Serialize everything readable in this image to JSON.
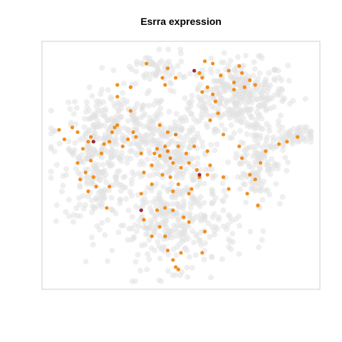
{
  "chart_data": {
    "type": "scatter",
    "title": "Esrra expression",
    "xlabel": "",
    "ylabel": "",
    "xlim": [
      0,
      100
    ],
    "ylim": [
      0,
      100
    ],
    "axes": "hidden",
    "grid": false,
    "legend": "none",
    "colors": {
      "background_cells": "#e2e2e2",
      "low": "#f28e1c",
      "mid": "#e0801a",
      "high": "#9a2a3a",
      "frame": "#cfcfcf"
    },
    "background_clusters": [
      {
        "name": "",
        "cx": 72,
        "cy": 80,
        "sx": 9,
        "sy": 7,
        "n": 320
      },
      {
        "name": "",
        "cx": 25,
        "cy": 65,
        "sx": 11,
        "sy": 8,
        "n": 260
      },
      {
        "name": "",
        "cx": 18,
        "cy": 45,
        "sx": 6,
        "sy": 10,
        "n": 160
      },
      {
        "name": "",
        "cx": 47,
        "cy": 55,
        "sx": 7,
        "sy": 10,
        "n": 240
      },
      {
        "name": "",
        "cx": 48,
        "cy": 25,
        "sx": 12,
        "sy": 9,
        "n": 300
      },
      {
        "name": "",
        "cx": 40,
        "cy": 90,
        "sx": 6,
        "sy": 4,
        "n": 60
      },
      {
        "name": "",
        "cx": 79,
        "cy": 53,
        "sx": 5,
        "sy": 9,
        "n": 150
      },
      {
        "name": "",
        "cx": 92,
        "cy": 62,
        "sx": 4,
        "sy": 2,
        "n": 50
      }
    ],
    "expressing_points": [
      {
        "x": 4,
        "y": 65,
        "v": 0.3
      },
      {
        "x": 6,
        "y": 61,
        "v": 0.3
      },
      {
        "x": 9,
        "y": 66,
        "v": 0.3
      },
      {
        "x": 11,
        "y": 64,
        "v": 0.3
      },
      {
        "x": 13,
        "y": 57,
        "v": 0.3
      },
      {
        "x": 15,
        "y": 60,
        "v": 0.3
      },
      {
        "x": 16,
        "y": 62,
        "v": 0.3
      },
      {
        "x": 17,
        "y": 60,
        "v": 1.0
      },
      {
        "x": 20,
        "y": 55,
        "v": 0.3
      },
      {
        "x": 21,
        "y": 59,
        "v": 0.3
      },
      {
        "x": 23,
        "y": 60,
        "v": 0.3
      },
      {
        "x": 24,
        "y": 64,
        "v": 0.3
      },
      {
        "x": 25,
        "y": 66,
        "v": 0.3
      },
      {
        "x": 26,
        "y": 67,
        "v": 0.3
      },
      {
        "x": 28,
        "y": 58,
        "v": 0.3
      },
      {
        "x": 30,
        "y": 61,
        "v": 0.3
      },
      {
        "x": 32,
        "y": 64,
        "v": 0.3
      },
      {
        "x": 33,
        "y": 62,
        "v": 0.3
      },
      {
        "x": 26,
        "y": 79,
        "v": 0.3
      },
      {
        "x": 26,
        "y": 84,
        "v": 0.3
      },
      {
        "x": 31,
        "y": 83,
        "v": 0.3
      },
      {
        "x": 31,
        "y": 73,
        "v": 0.3
      },
      {
        "x": 35,
        "y": 55,
        "v": 0.3
      },
      {
        "x": 16,
        "y": 52,
        "v": 0.3
      },
      {
        "x": 11,
        "y": 51,
        "v": 0.3
      },
      {
        "x": 14,
        "y": 47,
        "v": 0.3
      },
      {
        "x": 17,
        "y": 45,
        "v": 0.3
      },
      {
        "x": 12,
        "y": 44,
        "v": 0.3
      },
      {
        "x": 18,
        "y": 41,
        "v": 0.3
      },
      {
        "x": 15,
        "y": 39,
        "v": 0.3
      },
      {
        "x": 23,
        "y": 41,
        "v": 0.3
      },
      {
        "x": 22,
        "y": 32,
        "v": 0.3
      },
      {
        "x": 35,
        "y": 38,
        "v": 0.3
      },
      {
        "x": 36,
        "y": 47,
        "v": 0.3
      },
      {
        "x": 39,
        "y": 50,
        "v": 0.3
      },
      {
        "x": 40,
        "y": 55,
        "v": 0.3
      },
      {
        "x": 41,
        "y": 57,
        "v": 0.3
      },
      {
        "x": 42,
        "y": 54,
        "v": 0.3
      },
      {
        "x": 44,
        "y": 58,
        "v": 0.3
      },
      {
        "x": 45,
        "y": 56,
        "v": 0.7
      },
      {
        "x": 46,
        "y": 53,
        "v": 0.8
      },
      {
        "x": 47,
        "y": 51,
        "v": 0.3
      },
      {
        "x": 48,
        "y": 63,
        "v": 0.6
      },
      {
        "x": 49,
        "y": 58,
        "v": 0.3
      },
      {
        "x": 42,
        "y": 67,
        "v": 0.3
      },
      {
        "x": 45,
        "y": 64,
        "v": 0.3
      },
      {
        "x": 50,
        "y": 49,
        "v": 0.3
      },
      {
        "x": 53,
        "y": 51,
        "v": 0.3
      },
      {
        "x": 52,
        "y": 55,
        "v": 0.3
      },
      {
        "x": 55,
        "y": 58,
        "v": 0.3
      },
      {
        "x": 56,
        "y": 48,
        "v": 0.3
      },
      {
        "x": 57,
        "y": 45,
        "v": 0.3
      },
      {
        "x": 60,
        "y": 46,
        "v": 0.3
      },
      {
        "x": 61,
        "y": 50,
        "v": 0.3
      },
      {
        "x": 60,
        "y": 56,
        "v": 0.3
      },
      {
        "x": 57,
        "y": 46,
        "v": 0.9
      },
      {
        "x": 43,
        "y": 46,
        "v": 0.3
      },
      {
        "x": 46,
        "y": 45,
        "v": 0.3
      },
      {
        "x": 39,
        "y": 42,
        "v": 0.3
      },
      {
        "x": 49,
        "y": 42,
        "v": 0.3
      },
      {
        "x": 47,
        "y": 39,
        "v": 0.3
      },
      {
        "x": 53,
        "y": 38,
        "v": 0.3
      },
      {
        "x": 54,
        "y": 40,
        "v": 0.3
      },
      {
        "x": 41,
        "y": 31,
        "v": 0.3
      },
      {
        "x": 35,
        "y": 31,
        "v": 1.0
      },
      {
        "x": 36,
        "y": 27,
        "v": 0.3
      },
      {
        "x": 42,
        "y": 24,
        "v": 0.3
      },
      {
        "x": 44,
        "y": 20,
        "v": 0.3
      },
      {
        "x": 45,
        "y": 14,
        "v": 0.3
      },
      {
        "x": 47,
        "y": 10,
        "v": 0.3
      },
      {
        "x": 48,
        "y": 7,
        "v": 0.3
      },
      {
        "x": 49,
        "y": 6,
        "v": 0.3
      },
      {
        "x": 50,
        "y": 13,
        "v": 0.3
      },
      {
        "x": 51,
        "y": 28,
        "v": 0.3
      },
      {
        "x": 53,
        "y": 26,
        "v": 0.3
      },
      {
        "x": 39,
        "y": 20,
        "v": 0.3
      },
      {
        "x": 47,
        "y": 31,
        "v": 0.3
      },
      {
        "x": 44,
        "y": 32,
        "v": 0.3
      },
      {
        "x": 58,
        "y": 13,
        "v": 0.3
      },
      {
        "x": 59,
        "y": 22,
        "v": 0.3
      },
      {
        "x": 55,
        "y": 90,
        "v": 0.9
      },
      {
        "x": 57,
        "y": 89,
        "v": 0.3
      },
      {
        "x": 58,
        "y": 87,
        "v": 0.3
      },
      {
        "x": 60,
        "y": 83,
        "v": 0.3
      },
      {
        "x": 62,
        "y": 80,
        "v": 0.3
      },
      {
        "x": 63,
        "y": 77,
        "v": 0.3
      },
      {
        "x": 64,
        "y": 72,
        "v": 0.3
      },
      {
        "x": 61,
        "y": 69,
        "v": 0.3
      },
      {
        "x": 66,
        "y": 63,
        "v": 0.3
      },
      {
        "x": 70,
        "y": 82,
        "v": 0.3
      },
      {
        "x": 70,
        "y": 85,
        "v": 0.3
      },
      {
        "x": 74,
        "y": 83,
        "v": 0.3
      },
      {
        "x": 76,
        "y": 86,
        "v": 0.3
      },
      {
        "x": 78,
        "y": 84,
        "v": 0.3
      },
      {
        "x": 73,
        "y": 89,
        "v": 0.3
      },
      {
        "x": 72,
        "y": 92,
        "v": 0.3
      },
      {
        "x": 68,
        "y": 90,
        "v": 0.3
      },
      {
        "x": 65,
        "y": 88,
        "v": 0.3
      },
      {
        "x": 58,
        "y": 81,
        "v": 0.3
      },
      {
        "x": 59,
        "y": 94,
        "v": 0.3
      },
      {
        "x": 62,
        "y": 93,
        "v": 0.3
      },
      {
        "x": 37,
        "y": 93,
        "v": 0.3
      },
      {
        "x": 43,
        "y": 87,
        "v": 0.3
      },
      {
        "x": 45,
        "y": 91,
        "v": 0.3
      },
      {
        "x": 44,
        "y": 84,
        "v": 0.3
      },
      {
        "x": 48,
        "y": 87,
        "v": 0.3
      },
      {
        "x": 66,
        "y": 45,
        "v": 0.3
      },
      {
        "x": 68,
        "y": 40,
        "v": 0.3
      },
      {
        "x": 72,
        "y": 58,
        "v": 0.3
      },
      {
        "x": 73,
        "y": 53,
        "v": 0.3
      },
      {
        "x": 76,
        "y": 46,
        "v": 0.3
      },
      {
        "x": 79,
        "y": 33,
        "v": 0.3
      },
      {
        "x": 78,
        "y": 44,
        "v": 0.3
      },
      {
        "x": 80,
        "y": 51,
        "v": 0.3
      },
      {
        "x": 82,
        "y": 56,
        "v": 0.3
      },
      {
        "x": 87,
        "y": 59,
        "v": 0.3
      },
      {
        "x": 90,
        "y": 60,
        "v": 0.3
      },
      {
        "x": 94,
        "y": 62,
        "v": 0.3
      },
      {
        "x": 75,
        "y": 38,
        "v": 0.3
      }
    ]
  }
}
